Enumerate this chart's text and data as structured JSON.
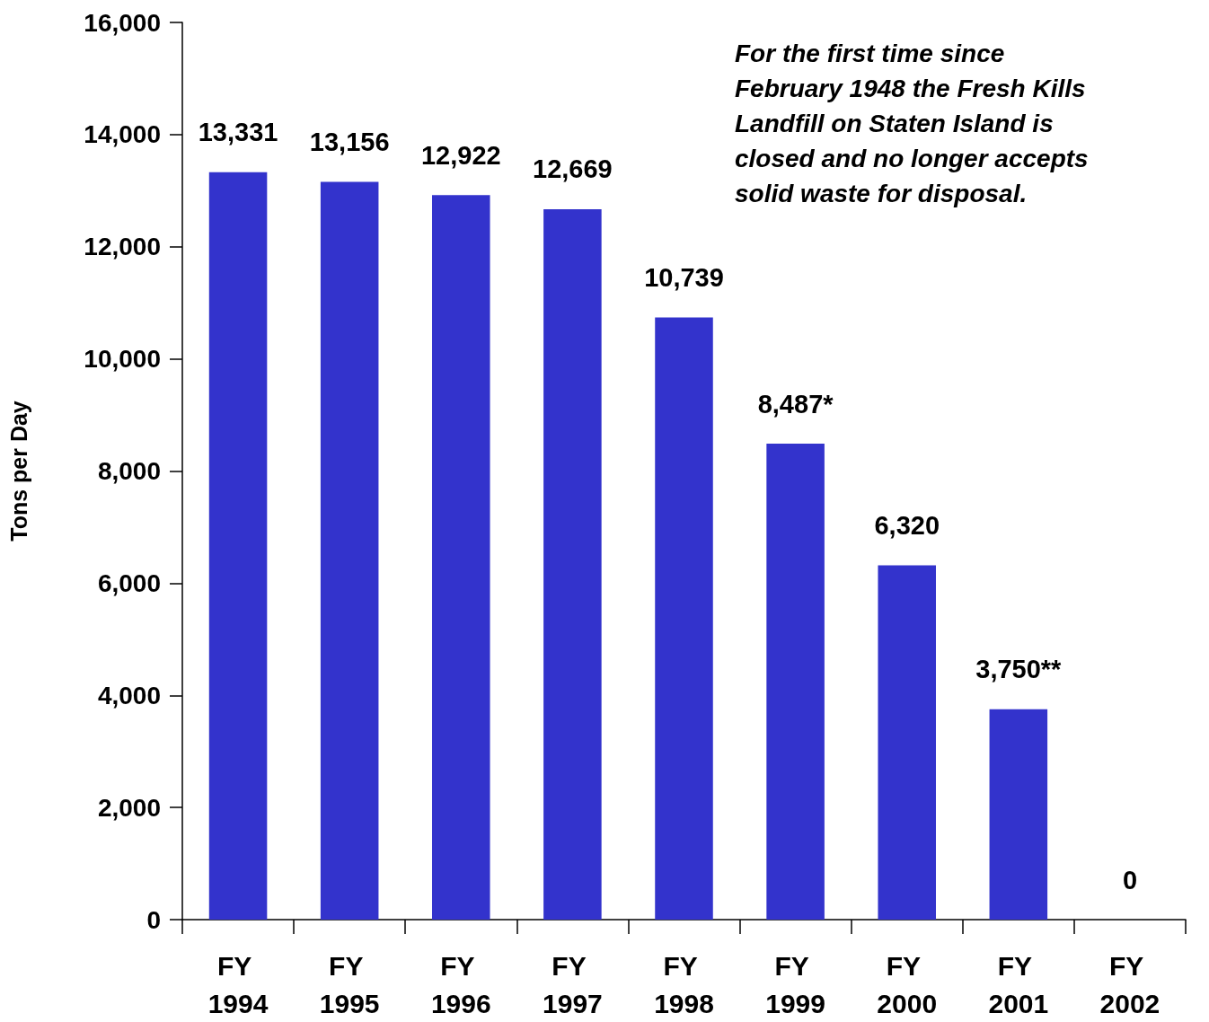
{
  "chart_data": {
    "type": "bar",
    "ylabel": "Tons per Day",
    "categories": [
      "FY 1994",
      "FY 1995",
      "FY 1996",
      "FY 1997",
      "FY 1998",
      "FY 1999",
      "FY 2000",
      "FY 2001",
      "FY 2002"
    ],
    "values": [
      13331,
      13156,
      12922,
      12669,
      10739,
      8487,
      6320,
      3750,
      0
    ],
    "value_labels": [
      "13,331",
      "13,156",
      "12,922",
      "12,669",
      "10,739",
      "8,487*",
      "6,320",
      "3,750**",
      "0"
    ],
    "color": "#3333cc",
    "ylim": [
      0,
      16000
    ],
    "yticks": [
      0,
      {
        "value": 2000,
        "label": "2,000"
      },
      {
        "value": 4000,
        "label": "4,000"
      },
      {
        "value": 6000,
        "label": "6,000"
      },
      {
        "value": 8000,
        "label": "8,000"
      },
      {
        "value": 10000,
        "label": "10,000"
      },
      {
        "value": 12000,
        "label": "12,000"
      },
      {
        "value": 14000,
        "label": "14,000"
      },
      {
        "value": 16000,
        "label": "16,000"
      }
    ],
    "annotations": [
      "For the first time since February 1948 the Fresh Kills Landfill on Staten Island is closed and no longer accepts solid waste for disposal."
    ]
  }
}
